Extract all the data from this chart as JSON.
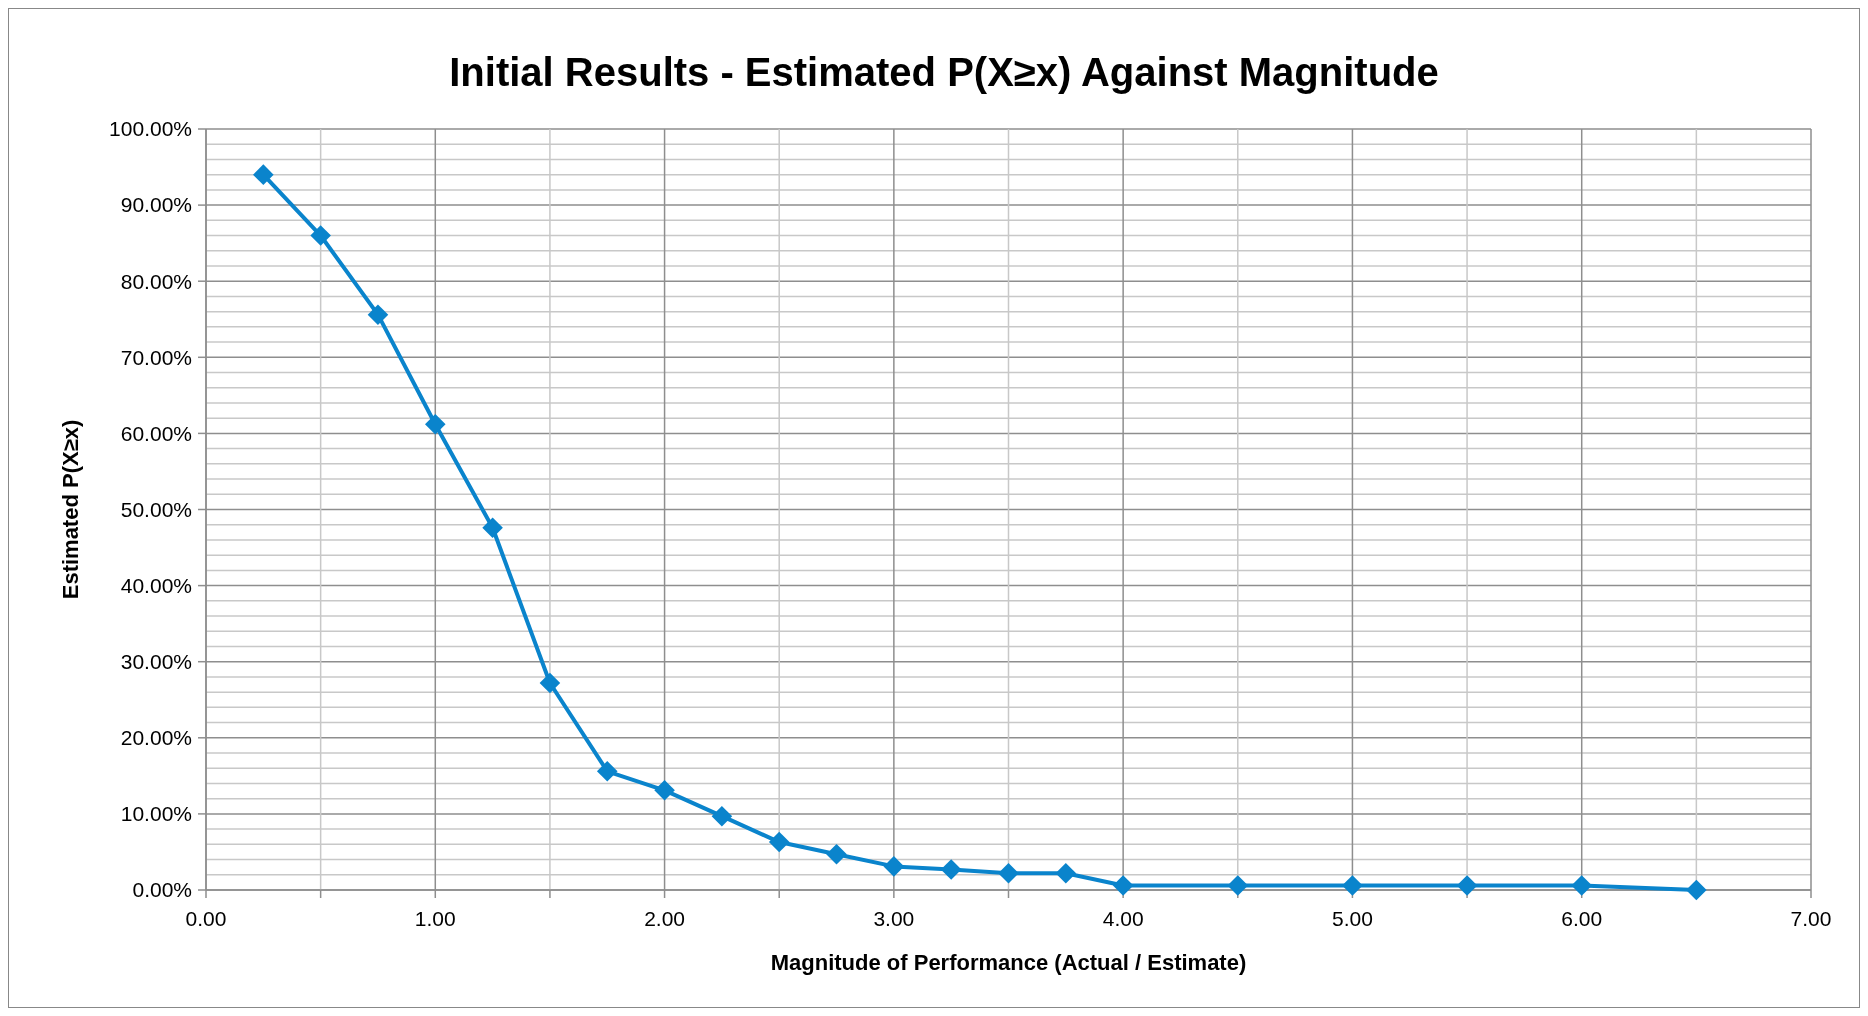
{
  "chart_data": {
    "type": "line",
    "title": "Initial Results - Estimated P(X≥x) Against Magnitude",
    "xlabel": "Magnitude of Performance (Actual / Estimate)",
    "ylabel": "Estimated P(X≥x)",
    "x": [
      0.25,
      0.5,
      0.75,
      1.0,
      1.25,
      1.5,
      1.75,
      2.0,
      2.25,
      2.5,
      2.75,
      3.0,
      3.25,
      3.5,
      3.75,
      4.0,
      4.5,
      5.0,
      5.5,
      6.0,
      6.5
    ],
    "series": [
      {
        "color": "#0a84cc",
        "values": [
          94,
          86,
          75.6,
          61.2,
          47.6,
          27.2,
          15.6,
          13.1,
          9.7,
          6.3,
          4.7,
          3.1,
          2.7,
          2.2,
          2.2,
          0.6,
          0.6,
          0.6,
          0.6,
          0.6,
          0
        ]
      }
    ],
    "xlim": [
      0,
      7
    ],
    "ylim": [
      0,
      100
    ],
    "xticks": [
      {
        "value": 0,
        "label": "0.00"
      },
      {
        "value": 0.5,
        "label": null
      },
      {
        "value": 1,
        "label": "1.00"
      },
      {
        "value": 1.5,
        "label": null
      },
      {
        "value": 2,
        "label": "2.00"
      },
      {
        "value": 2.5,
        "label": null
      },
      {
        "value": 3,
        "label": "3.00"
      },
      {
        "value": 3.5,
        "label": null
      },
      {
        "value": 4,
        "label": "4.00"
      },
      {
        "value": 4.5,
        "label": null
      },
      {
        "value": 5,
        "label": "5.00"
      },
      {
        "value": 5.5,
        "label": null
      },
      {
        "value": 6,
        "label": "6.00"
      },
      {
        "value": 6.5,
        "label": null
      },
      {
        "value": 7,
        "label": "7.00"
      }
    ],
    "yticks": [
      {
        "value": 0,
        "label": "0.00%"
      },
      {
        "value": 2,
        "label": null
      },
      {
        "value": 4,
        "label": null
      },
      {
        "value": 6,
        "label": null
      },
      {
        "value": 8,
        "label": null
      },
      {
        "value": 10,
        "label": "10.00%"
      },
      {
        "value": 12,
        "label": null
      },
      {
        "value": 14,
        "label": null
      },
      {
        "value": 16,
        "label": null
      },
      {
        "value": 18,
        "label": null
      },
      {
        "value": 20,
        "label": "20.00%"
      },
      {
        "value": 22,
        "label": null
      },
      {
        "value": 24,
        "label": null
      },
      {
        "value": 26,
        "label": null
      },
      {
        "value": 28,
        "label": null
      },
      {
        "value": 30,
        "label": "30.00%"
      },
      {
        "value": 32,
        "label": null
      },
      {
        "value": 34,
        "label": null
      },
      {
        "value": 36,
        "label": null
      },
      {
        "value": 38,
        "label": null
      },
      {
        "value": 40,
        "label": "40.00%"
      },
      {
        "value": 42,
        "label": null
      },
      {
        "value": 44,
        "label": null
      },
      {
        "value": 46,
        "label": null
      },
      {
        "value": 48,
        "label": null
      },
      {
        "value": 50,
        "label": "50.00%"
      },
      {
        "value": 52,
        "label": null
      },
      {
        "value": 54,
        "label": null
      },
      {
        "value": 56,
        "label": null
      },
      {
        "value": 58,
        "label": null
      },
      {
        "value": 60,
        "label": "60.00%"
      },
      {
        "value": 62,
        "label": null
      },
      {
        "value": 64,
        "label": null
      },
      {
        "value": 66,
        "label": null
      },
      {
        "value": 68,
        "label": null
      },
      {
        "value": 70,
        "label": "70.00%"
      },
      {
        "value": 72,
        "label": null
      },
      {
        "value": 74,
        "label": null
      },
      {
        "value": 76,
        "label": null
      },
      {
        "value": 78,
        "label": null
      },
      {
        "value": 80,
        "label": "80.00%"
      },
      {
        "value": 82,
        "label": null
      },
      {
        "value": 84,
        "label": null
      },
      {
        "value": 86,
        "label": null
      },
      {
        "value": 88,
        "label": null
      },
      {
        "value": 90,
        "label": "90.00%"
      },
      {
        "value": 92,
        "label": null
      },
      {
        "value": 94,
        "label": null
      },
      {
        "value": 96,
        "label": null
      },
      {
        "value": 98,
        "label": null
      },
      {
        "value": 100,
        "label": "100.00%"
      }
    ],
    "grid": true,
    "marker": "diamond",
    "line_style": "solid"
  }
}
